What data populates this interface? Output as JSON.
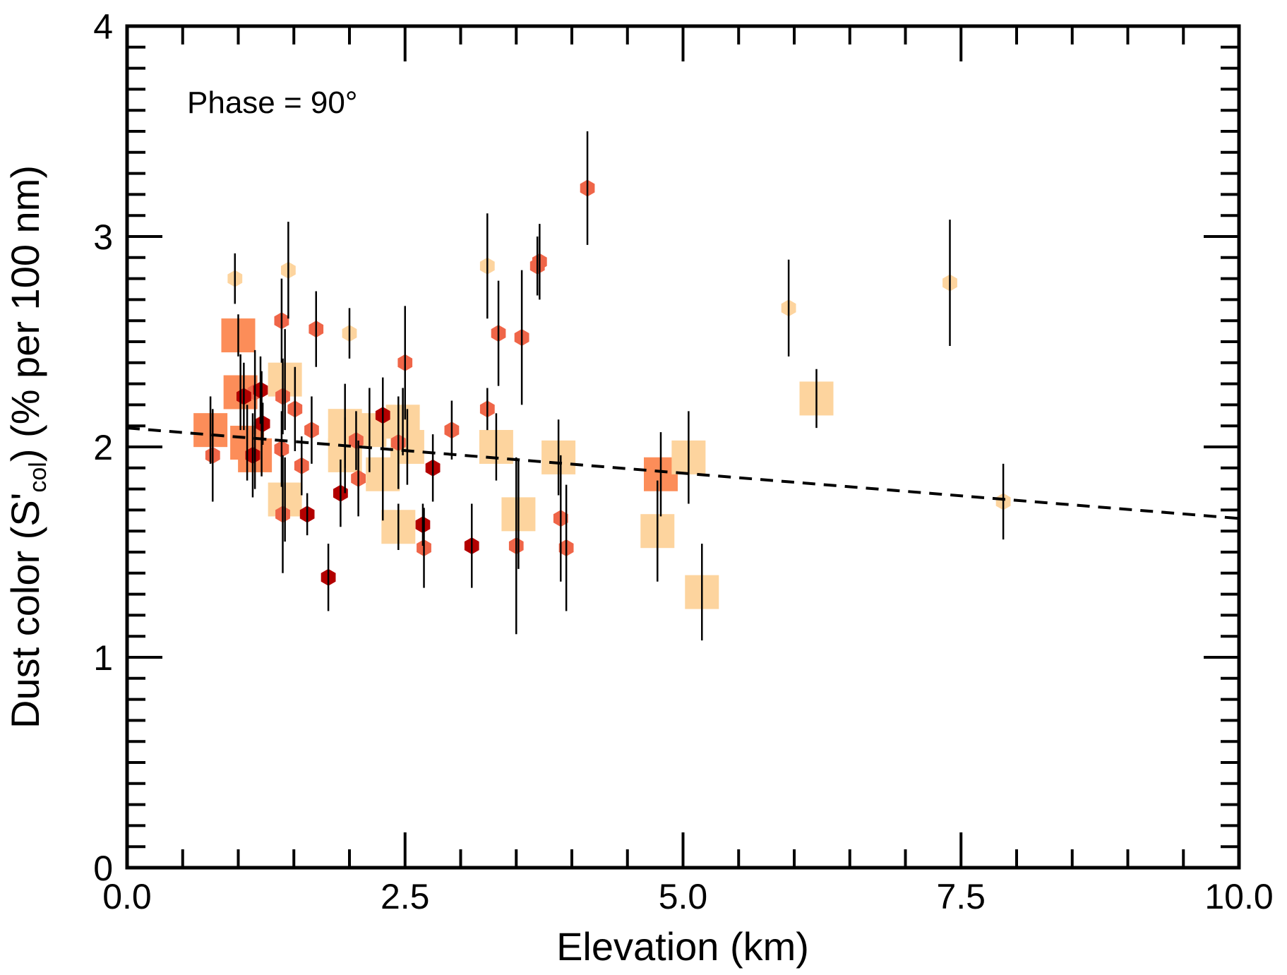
{
  "chart_data": {
    "type": "scatter",
    "annotation": "Phase = 90°",
    "xlabel": "Elevation  (km)",
    "ylabel": "Dust color (S'col) (% per 100 nm)",
    "ylabel_parts": {
      "pre": "Dust color (S'",
      "sub": "col",
      "post": ") (% per 100 nm)"
    },
    "xlim": [
      0.0,
      10.0
    ],
    "ylim": [
      0,
      4
    ],
    "x_ticks": [
      "0.0",
      "2.5",
      "5.0",
      "7.5",
      "10.0"
    ],
    "x_tick_values": [
      0.0,
      2.5,
      5.0,
      7.5,
      10.0
    ],
    "y_ticks": [
      "0",
      "1",
      "2",
      "3",
      "4"
    ],
    "y_tick_values": [
      0,
      1,
      2,
      3,
      4
    ],
    "grid": false,
    "legend": "none",
    "colors": {
      "light": "#fdd49e",
      "medium": "#fc8d59",
      "orange_red": "#ef6548",
      "dark_red": "#b30000",
      "trend_line": "#000000"
    },
    "trend_line": {
      "style": "dashed",
      "x": [
        0.0,
        10.0
      ],
      "y": [
        2.09,
        1.66
      ]
    },
    "points": [
      {
        "x": 0.97,
        "y": 2.8,
        "err": 0.12,
        "shape": "hex",
        "color": "light"
      },
      {
        "x": 1.45,
        "y": 2.84,
        "err": 0.23,
        "shape": "hex",
        "color": "light"
      },
      {
        "x": 2.0,
        "y": 2.54,
        "err": 0.12,
        "shape": "hex",
        "color": "light"
      },
      {
        "x": 3.24,
        "y": 2.86,
        "err": 0.25,
        "shape": "hex",
        "color": "light"
      },
      {
        "x": 5.95,
        "y": 2.66,
        "err": 0.23,
        "shape": "hex",
        "color": "light"
      },
      {
        "x": 7.4,
        "y": 2.78,
        "err": 0.3,
        "shape": "hex",
        "color": "light"
      },
      {
        "x": 7.88,
        "y": 1.74,
        "err": 0.18,
        "shape": "hex",
        "color": "light"
      },
      {
        "x": 4.14,
        "y": 3.23,
        "err": 0.27,
        "shape": "hex",
        "color": "orange_red"
      },
      {
        "x": 3.71,
        "y": 2.88,
        "err": 0.18,
        "shape": "hex",
        "color": "orange_red"
      },
      {
        "x": 3.69,
        "y": 2.86,
        "err": 0.14,
        "shape": "hex",
        "color": "orange_red"
      },
      {
        "x": 3.34,
        "y": 2.54,
        "err": 0.25,
        "shape": "hex",
        "color": "orange_red"
      },
      {
        "x": 3.55,
        "y": 2.52,
        "err": 0.32,
        "shape": "hex",
        "color": "orange_red"
      },
      {
        "x": 1.39,
        "y": 2.6,
        "err": 0.2,
        "shape": "hex",
        "color": "orange_red"
      },
      {
        "x": 1.7,
        "y": 2.56,
        "err": 0.18,
        "shape": "hex",
        "color": "orange_red"
      },
      {
        "x": 2.5,
        "y": 2.4,
        "err": 0.27,
        "shape": "hex",
        "color": "orange_red"
      },
      {
        "x": 3.24,
        "y": 2.18,
        "err": 0.1,
        "shape": "hex",
        "color": "orange_red"
      },
      {
        "x": 2.92,
        "y": 2.08,
        "err": 0.14,
        "shape": "hex",
        "color": "orange_red"
      },
      {
        "x": 1.4,
        "y": 2.24,
        "err": 0.18,
        "shape": "hex",
        "color": "orange_red"
      },
      {
        "x": 1.51,
        "y": 2.18,
        "err": 0.2,
        "shape": "hex",
        "color": "orange_red"
      },
      {
        "x": 1.66,
        "y": 2.08,
        "err": 0.16,
        "shape": "hex",
        "color": "orange_red"
      },
      {
        "x": 2.06,
        "y": 2.03,
        "err": 0.14,
        "shape": "hex",
        "color": "orange_red"
      },
      {
        "x": 2.44,
        "y": 2.02,
        "err": 0.22,
        "shape": "hex",
        "color": "orange_red"
      },
      {
        "x": 0.77,
        "y": 1.96,
        "err": 0.22,
        "shape": "hex",
        "color": "orange_red"
      },
      {
        "x": 1.39,
        "y": 1.99,
        "err": 0.18,
        "shape": "hex",
        "color": "orange_red"
      },
      {
        "x": 1.57,
        "y": 1.91,
        "err": 0.14,
        "shape": "hex",
        "color": "orange_red"
      },
      {
        "x": 2.08,
        "y": 1.85,
        "err": 0.18,
        "shape": "hex",
        "color": "orange_red"
      },
      {
        "x": 1.4,
        "y": 1.68,
        "err": 0.28,
        "shape": "hex",
        "color": "orange_red"
      },
      {
        "x": 2.67,
        "y": 1.52,
        "err": 0.19,
        "shape": "hex",
        "color": "orange_red"
      },
      {
        "x": 3.5,
        "y": 1.53,
        "err": 0.42,
        "shape": "hex",
        "color": "orange_red"
      },
      {
        "x": 3.9,
        "y": 1.66,
        "err": 0.3,
        "shape": "hex",
        "color": "orange_red"
      },
      {
        "x": 3.95,
        "y": 1.52,
        "err": 0.3,
        "shape": "hex",
        "color": "orange_red"
      },
      {
        "x": 1.15,
        "y": 2.26,
        "err": 0.2,
        "shape": "hex",
        "color": "orange_red"
      },
      {
        "x": 1.21,
        "y": 2.11,
        "err": 0.25,
        "shape": "hex",
        "color": "orange_red"
      },
      {
        "x": 1.05,
        "y": 2.24,
        "err": 0.16,
        "shape": "hex",
        "color": "dark_red"
      },
      {
        "x": 1.2,
        "y": 2.27,
        "err": 0.16,
        "shape": "hex",
        "color": "dark_red"
      },
      {
        "x": 1.22,
        "y": 2.11,
        "err": 0.1,
        "shape": "hex",
        "color": "dark_red"
      },
      {
        "x": 1.13,
        "y": 1.96,
        "err": 0.2,
        "shape": "hex",
        "color": "dark_red"
      },
      {
        "x": 2.3,
        "y": 2.15,
        "err": 0.18,
        "shape": "hex",
        "color": "dark_red"
      },
      {
        "x": 1.92,
        "y": 1.78,
        "err": 0.16,
        "shape": "hex",
        "color": "dark_red"
      },
      {
        "x": 1.62,
        "y": 1.68,
        "err": 0.1,
        "shape": "hex",
        "color": "dark_red"
      },
      {
        "x": 2.75,
        "y": 1.9,
        "err": 0.16,
        "shape": "hex",
        "color": "dark_red"
      },
      {
        "x": 2.66,
        "y": 1.63,
        "err": 0.1,
        "shape": "hex",
        "color": "dark_red"
      },
      {
        "x": 3.1,
        "y": 1.53,
        "err": 0.2,
        "shape": "hex",
        "color": "dark_red"
      },
      {
        "x": 1.81,
        "y": 1.38,
        "err": 0.16,
        "shape": "hex",
        "color": "dark_red"
      },
      {
        "x": 1.0,
        "y": 2.53,
        "err": 0.1,
        "shape": "square",
        "color": "medium"
      },
      {
        "x": 1.02,
        "y": 2.26,
        "err": 0.18,
        "shape": "square",
        "color": "medium"
      },
      {
        "x": 0.75,
        "y": 2.08,
        "err": 0.16,
        "shape": "square",
        "color": "medium"
      },
      {
        "x": 1.08,
        "y": 2.02,
        "err": 0.18,
        "shape": "square",
        "color": "medium"
      },
      {
        "x": 1.15,
        "y": 1.96,
        "err": 0.16,
        "shape": "square",
        "color": "medium"
      },
      {
        "x": 4.8,
        "y": 1.87,
        "err": 0.2,
        "shape": "square",
        "color": "medium"
      },
      {
        "x": 1.42,
        "y": 2.32,
        "err": 0.24,
        "shape": "square",
        "color": "light"
      },
      {
        "x": 1.42,
        "y": 1.75,
        "err": 0.2,
        "shape": "square",
        "color": "light"
      },
      {
        "x": 1.96,
        "y": 2.1,
        "err": 0.2,
        "shape": "square",
        "color": "light"
      },
      {
        "x": 1.96,
        "y": 1.96,
        "err": 0.18,
        "shape": "square",
        "color": "light"
      },
      {
        "x": 2.18,
        "y": 2.08,
        "err": 0.2,
        "shape": "square",
        "color": "light"
      },
      {
        "x": 2.48,
        "y": 2.12,
        "err": 0.16,
        "shape": "square",
        "color": "light"
      },
      {
        "x": 2.3,
        "y": 1.87,
        "err": 0.22,
        "shape": "square",
        "color": "light"
      },
      {
        "x": 2.52,
        "y": 2.0,
        "err": 0.18,
        "shape": "square",
        "color": "light"
      },
      {
        "x": 2.44,
        "y": 1.62,
        "err": 0.11,
        "shape": "square",
        "color": "light"
      },
      {
        "x": 3.32,
        "y": 2.0,
        "err": 0.16,
        "shape": "square",
        "color": "light"
      },
      {
        "x": 3.52,
        "y": 1.68,
        "err": 0.26,
        "shape": "square",
        "color": "light"
      },
      {
        "x": 3.88,
        "y": 1.95,
        "err": 0.18,
        "shape": "square",
        "color": "light"
      },
      {
        "x": 4.77,
        "y": 1.6,
        "err": 0.24,
        "shape": "square",
        "color": "light"
      },
      {
        "x": 5.05,
        "y": 1.95,
        "err": 0.22,
        "shape": "square",
        "color": "light"
      },
      {
        "x": 5.17,
        "y": 1.31,
        "err": 0.23,
        "shape": "square",
        "color": "light"
      },
      {
        "x": 6.2,
        "y": 2.23,
        "err": 0.14,
        "shape": "square",
        "color": "light"
      }
    ]
  }
}
